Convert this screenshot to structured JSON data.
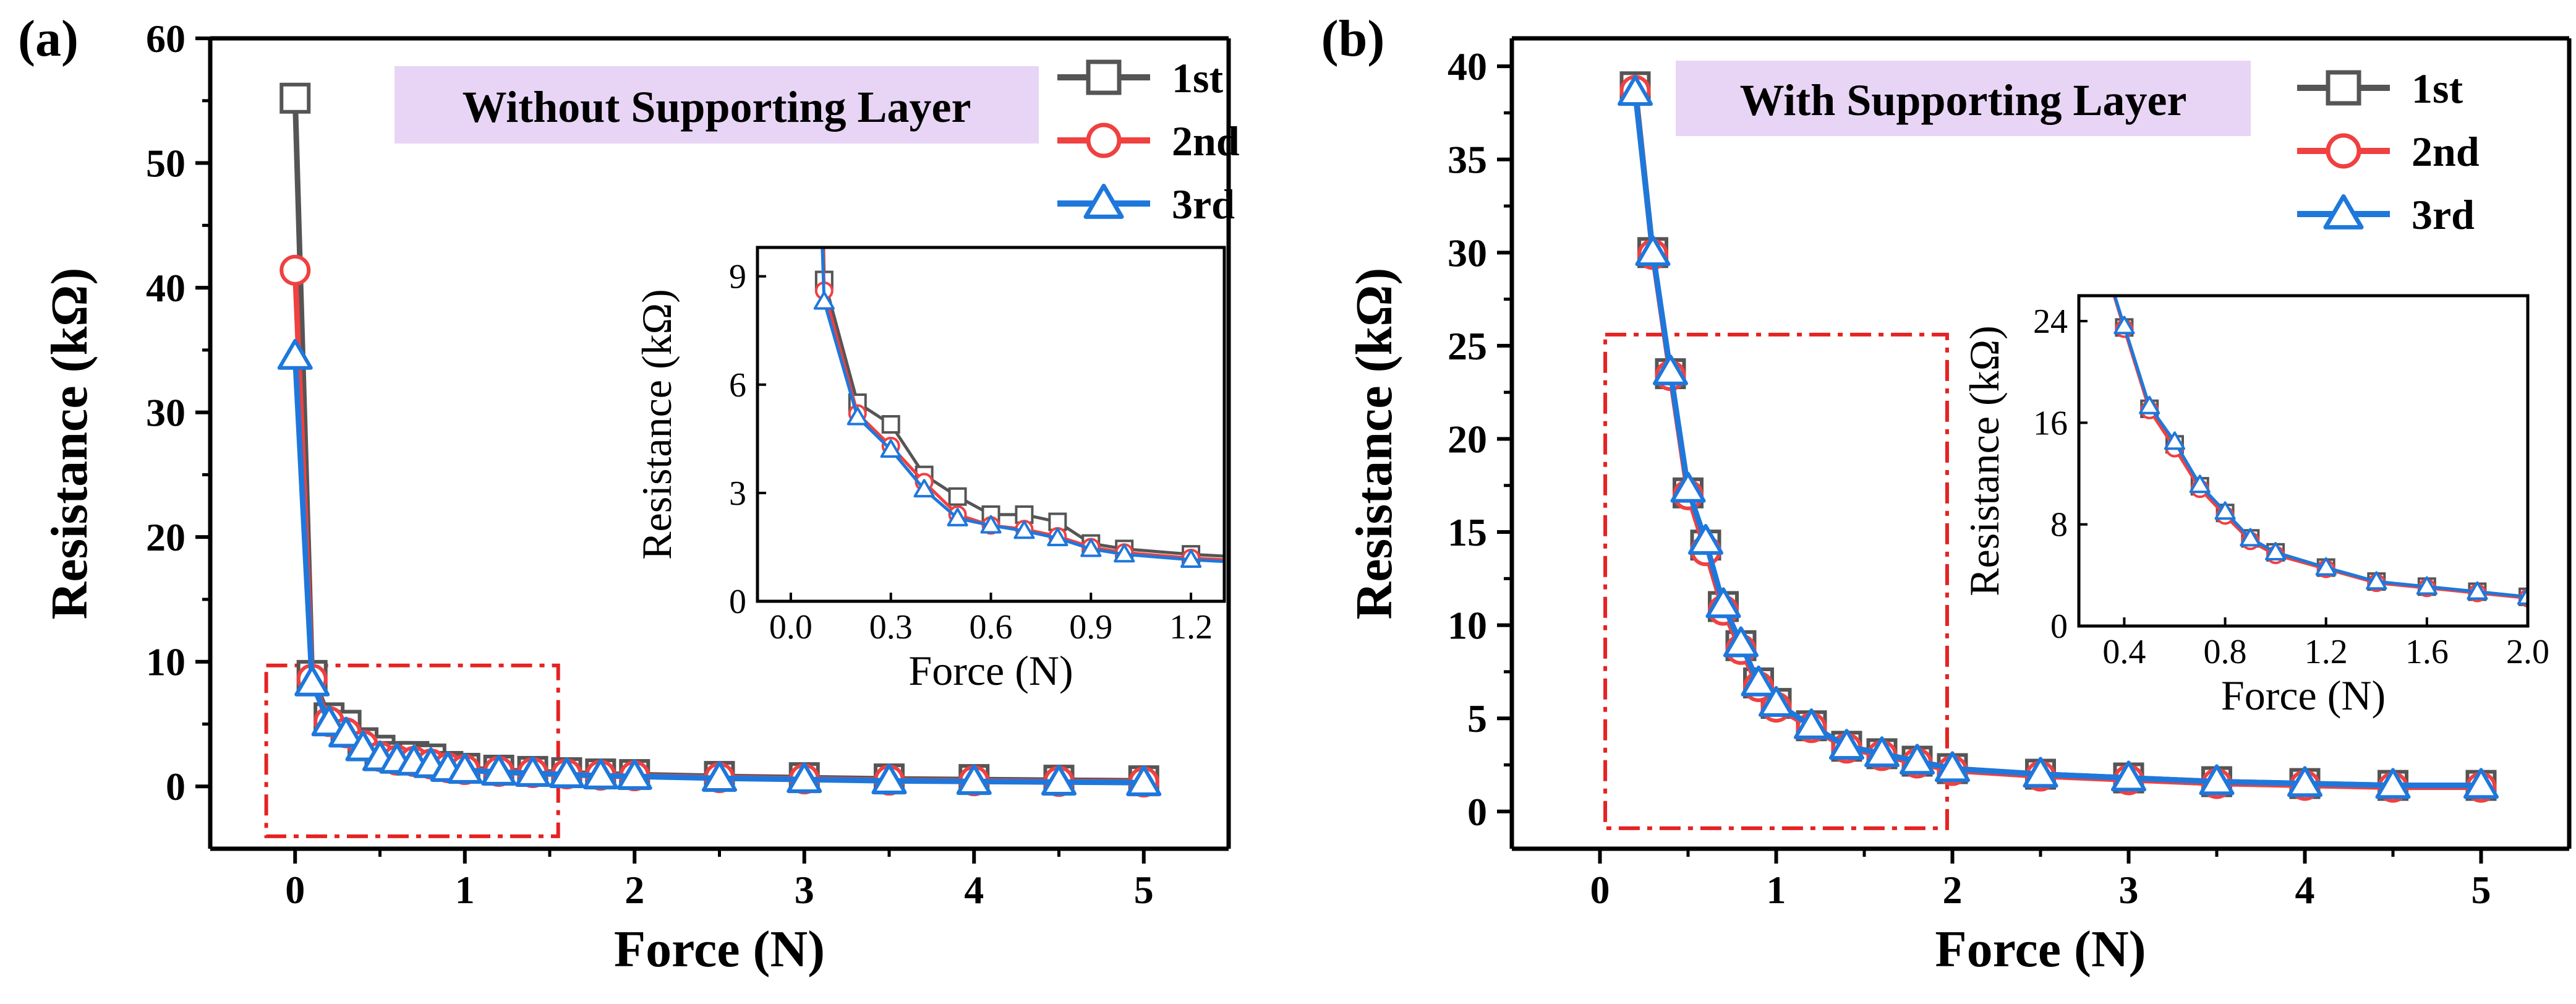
{
  "colors": {
    "series_1st": "#555555",
    "series_2nd": "#f04040",
    "series_3rd": "#1e78dc",
    "title_box": "#e8d5f5",
    "zoom_box": "#e52222",
    "axis": "#000000"
  },
  "chart_data": [
    {
      "panel_label": "(a)",
      "type": "line",
      "title": "Without Supporting Layer",
      "xlabel": "Force (N)",
      "ylabel": "Resistance (kΩ)",
      "xlim": [
        -0.5,
        5.5
      ],
      "ylim": [
        -5,
        60
      ],
      "xticks": [
        0,
        1,
        2,
        3,
        4,
        5
      ],
      "xtick_labels": [
        "0",
        "1",
        "2",
        "3",
        "4",
        "5"
      ],
      "yticks": [
        0,
        10,
        20,
        30,
        40,
        50,
        60
      ],
      "ytick_labels": [
        "0",
        "10",
        "20",
        "30",
        "40",
        "50",
        "60"
      ],
      "grid": false,
      "legend": "top-right",
      "zoom_box": {
        "x": [
          -0.17,
          1.55
        ],
        "y": [
          -4,
          9.7
        ]
      },
      "series": [
        {
          "name": "1st",
          "marker": "square",
          "x": [
            0,
            0.1,
            0.2,
            0.3,
            0.4,
            0.5,
            0.6,
            0.7,
            0.8,
            0.9,
            1.0,
            1.2,
            1.4,
            1.6,
            1.8,
            2.0,
            2.5,
            3.0,
            3.5,
            4.0,
            4.5,
            5.0
          ],
          "y": [
            55.2,
            8.9,
            5.5,
            4.9,
            3.5,
            2.9,
            2.4,
            2.4,
            2.2,
            1.6,
            1.45,
            1.3,
            1.2,
            1.1,
            1.0,
            0.95,
            0.8,
            0.7,
            0.6,
            0.55,
            0.5,
            0.45
          ]
        },
        {
          "name": "2nd",
          "marker": "circle",
          "x": [
            0,
            0.1,
            0.2,
            0.3,
            0.4,
            0.5,
            0.6,
            0.7,
            0.8,
            0.9,
            1.0,
            1.2,
            1.4,
            1.6,
            1.8,
            2.0,
            2.5,
            3.0,
            3.5,
            4.0,
            4.5,
            5.0
          ],
          "y": [
            41.4,
            8.6,
            5.2,
            4.3,
            3.3,
            2.4,
            2.1,
            2.0,
            1.8,
            1.5,
            1.35,
            1.2,
            1.1,
            1.0,
            0.9,
            0.85,
            0.7,
            0.6,
            0.5,
            0.45,
            0.4,
            0.35
          ]
        },
        {
          "name": "3rd",
          "marker": "triangle",
          "x": [
            0,
            0.1,
            0.2,
            0.3,
            0.4,
            0.5,
            0.6,
            0.7,
            0.8,
            0.9,
            1.0,
            1.2,
            1.4,
            1.6,
            1.8,
            2.0,
            2.5,
            3.0,
            3.5,
            4.0,
            4.5,
            5.0
          ],
          "y": [
            34.5,
            8.3,
            5.1,
            4.2,
            3.1,
            2.3,
            2.1,
            1.95,
            1.75,
            1.45,
            1.3,
            1.15,
            1.05,
            0.95,
            0.85,
            0.8,
            0.65,
            0.55,
            0.45,
            0.4,
            0.35,
            0.3
          ]
        }
      ],
      "inset": {
        "xlabel": "Force (N)",
        "ylabel": "Resistance (kΩ)",
        "xlim": [
          -0.1,
          1.3
        ],
        "ylim": [
          0,
          9.8
        ],
        "xticks": [
          0.0,
          0.3,
          0.6,
          0.9,
          1.2
        ],
        "xtick_labels": [
          "0.0",
          "0.3",
          "0.6",
          "0.9",
          "1.2"
        ],
        "yticks": [
          0,
          3,
          6,
          9
        ],
        "ytick_labels": [
          "0",
          "3",
          "6",
          "9"
        ]
      }
    },
    {
      "panel_label": "(b)",
      "type": "line",
      "title": "With Supporting Layer",
      "xlabel": "Force (N)",
      "ylabel": "Resistance (kΩ)",
      "xlim": [
        -0.5,
        5.5
      ],
      "ylim": [
        -2,
        41.5
      ],
      "xticks": [
        0,
        1,
        2,
        3,
        4,
        5
      ],
      "xtick_labels": [
        "0",
        "1",
        "2",
        "3",
        "4",
        "5"
      ],
      "yticks": [
        0,
        5,
        10,
        15,
        20,
        25,
        30,
        35,
        40
      ],
      "ytick_labels": [
        "0",
        "5",
        "10",
        "15",
        "20",
        "25",
        "30",
        "35",
        "40"
      ],
      "grid": false,
      "legend": "top-right",
      "zoom_box": {
        "x": [
          0.03,
          1.97
        ],
        "y": [
          -0.9,
          25.6
        ]
      },
      "series": [
        {
          "name": "1st",
          "marker": "square",
          "x": [
            0.2,
            0.3,
            0.4,
            0.5,
            0.6,
            0.7,
            0.8,
            0.9,
            1.0,
            1.2,
            1.4,
            1.6,
            1.8,
            2.0,
            2.5,
            3.0,
            3.5,
            4.0,
            4.5,
            5.0
          ],
          "y": [
            38.9,
            30.0,
            23.5,
            17.1,
            14.3,
            11.0,
            8.9,
            6.9,
            5.8,
            4.6,
            3.5,
            3.1,
            2.7,
            2.3,
            2.0,
            1.8,
            1.6,
            1.5,
            1.4,
            1.4
          ]
        },
        {
          "name": "2nd",
          "marker": "circle",
          "x": [
            0.2,
            0.3,
            0.4,
            0.5,
            0.6,
            0.7,
            0.8,
            0.9,
            1.0,
            1.2,
            1.4,
            1.6,
            1.8,
            2.0,
            2.5,
            3.0,
            3.5,
            4.0,
            4.5,
            5.0
          ],
          "y": [
            38.7,
            29.9,
            23.4,
            17.0,
            14.0,
            10.8,
            8.7,
            6.7,
            5.6,
            4.5,
            3.4,
            3.0,
            2.6,
            2.2,
            1.9,
            1.7,
            1.5,
            1.4,
            1.3,
            1.3
          ]
        },
        {
          "name": "3rd",
          "marker": "triangle",
          "x": [
            0.2,
            0.3,
            0.4,
            0.5,
            0.6,
            0.7,
            0.8,
            0.9,
            1.0,
            1.2,
            1.4,
            1.6,
            1.8,
            2.0,
            2.5,
            3.0,
            3.5,
            4.0,
            4.5,
            5.0
          ],
          "y": [
            38.6,
            30.0,
            23.6,
            17.3,
            14.5,
            11.1,
            9.0,
            6.9,
            5.8,
            4.6,
            3.5,
            3.1,
            2.7,
            2.3,
            2.0,
            1.8,
            1.6,
            1.5,
            1.4,
            1.4
          ]
        }
      ],
      "inset": {
        "xlabel": "Force (N)",
        "ylabel": "Resistance (kΩ)",
        "xlim": [
          0.22,
          2.0
        ],
        "ylim": [
          0,
          26
        ],
        "xticks": [
          0.4,
          0.8,
          1.2,
          1.6,
          2.0
        ],
        "xtick_labels": [
          "0.4",
          "0.8",
          "1.2",
          "1.6",
          "2.0"
        ],
        "yticks": [
          0,
          8,
          16,
          24
        ],
        "ytick_labels": [
          "0",
          "8",
          "16",
          "24"
        ]
      }
    }
  ]
}
